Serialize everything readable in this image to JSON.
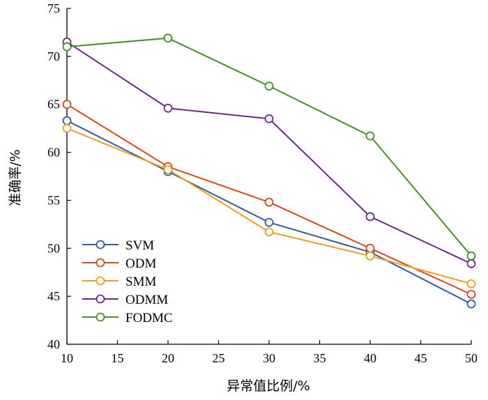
{
  "chart_data": {
    "type": "line",
    "title": "",
    "xlabel": "异常值比例/%",
    "ylabel": "准确率/%",
    "xlim": [
      10,
      50
    ],
    "ylim": [
      40,
      75
    ],
    "xticks": [
      10,
      15,
      20,
      25,
      30,
      35,
      40,
      45,
      50
    ],
    "yticks": [
      40,
      45,
      50,
      55,
      60,
      65,
      70,
      75
    ],
    "x": [
      10,
      20,
      30,
      40,
      50
    ],
    "grid": false,
    "legend_position": "bottom-left",
    "series": [
      {
        "name": "SVM",
        "color": "#2f5aa3",
        "values": [
          63.3,
          58.0,
          52.7,
          49.6,
          44.2
        ]
      },
      {
        "name": "ODM",
        "color": "#d04a20",
        "values": [
          65.0,
          58.5,
          54.8,
          50.0,
          45.2
        ]
      },
      {
        "name": "SMM",
        "color": "#e8a020",
        "values": [
          62.5,
          58.2,
          51.7,
          49.2,
          46.3
        ]
      },
      {
        "name": "ODMM",
        "color": "#6a2a82",
        "values": [
          71.5,
          64.6,
          63.5,
          53.3,
          48.4
        ]
      },
      {
        "name": "FODMC",
        "color": "#4a8c2a",
        "values": [
          71.0,
          71.9,
          66.9,
          61.7,
          49.2
        ]
      }
    ]
  }
}
